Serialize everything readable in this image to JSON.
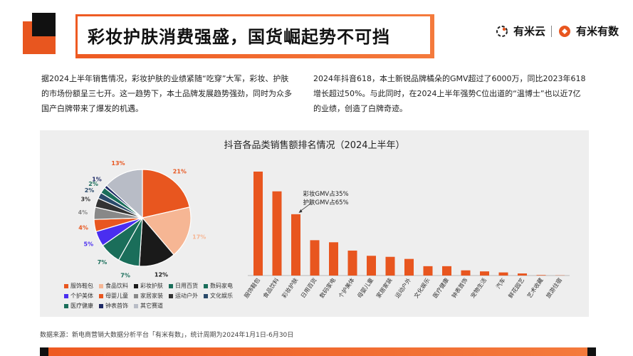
{
  "header": {
    "title": "彩妆护肤消费强盛，国货崛起势不可挡",
    "logo_left": "有米云",
    "logo_right": "有米有数"
  },
  "paragraphs": {
    "left": "据2024上半年销售情况，彩妆护肤的业绩紧随“吃穿”大军，彩妆、护肤的市场份额呈三七开。这一趋势下，本土品牌发展趋势强劲，同时为众多国产白牌带来了爆发的机遇。",
    "right": "2024年抖音618，本土新锐品牌橘朵的GMV超过了6000万，同比2023年618增长超过50%。与此同时，在2024上半年强势C位出道的“温博士”也以近7亿的业绩，创造了白牌奇迹。"
  },
  "source": "数据来源：新电商营销大数据分析平台「有米有数」，统计周期为2024年1月1日-6月30日",
  "colors": {
    "accent": "#e8561f",
    "bar": "#e8561f"
  },
  "chart_data": [
    {
      "type": "pie",
      "title": "抖音各品类销售额排名情况（2024上半年）",
      "categories": [
        "服饰鞋包",
        "食品饮料",
        "彩妆护肤",
        "日用百货",
        "数码家电",
        "个护美体",
        "母婴儿童",
        "家居家装",
        "运动户外",
        "文化娱乐",
        "医疗健康",
        "钟表首饰",
        "其它赛道"
      ],
      "slice_labels": [
        "21%",
        "17%",
        "12%",
        "7%",
        "7%",
        "5%",
        "4%",
        "4%",
        "3%",
        "2%",
        "2%",
        "1%",
        "13%"
      ],
      "values": [
        21,
        17,
        12,
        7,
        7,
        5,
        4,
        4,
        3,
        2,
        2,
        1,
        13
      ],
      "colors": [
        "#e8561f",
        "#f6b694",
        "#1a1a1a",
        "#1a6e5a",
        "#1a6e5a",
        "#4a2ef0",
        "#e8561f",
        "#888888",
        "#333333",
        "#2a4a6a",
        "#1a6e5a",
        "#1e2a66",
        "#b8bcc6"
      ]
    },
    {
      "type": "bar",
      "categories": [
        "服饰鞋包",
        "食品饮料",
        "彩妆护肤",
        "日用百货",
        "数码家电",
        "个护美体",
        "母婴儿童",
        "家居家装",
        "运动户外",
        "文化娱乐",
        "医疗健康",
        "钟表首饰",
        "宠物生活",
        "汽车",
        "鲜花园艺",
        "艺术收藏",
        "旅游住宿"
      ],
      "values": [
        100,
        81,
        59,
        34,
        32,
        24,
        19,
        18,
        16,
        9,
        9,
        5,
        4,
        3,
        2,
        0.5,
        0.2
      ],
      "annotation": [
        "彩妆GMV占35%",
        "护肤GMV占65%"
      ],
      "ylim": [
        0,
        100
      ]
    }
  ]
}
